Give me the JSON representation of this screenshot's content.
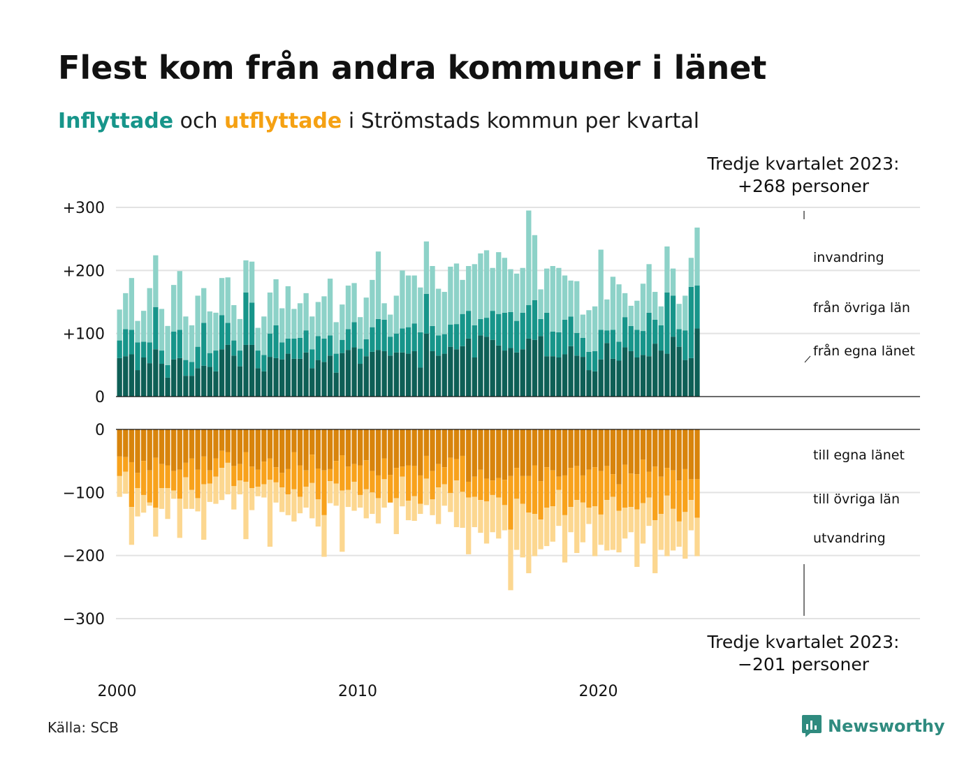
{
  "header": {
    "title": "Flest kom från andra kommuner i länet",
    "subtitle_inflow": "Inflyttade",
    "subtitle_och": "och",
    "subtitle_outflow": "utflyttade",
    "subtitle_rest": "i Strömstads kommun per kvartal"
  },
  "footer": {
    "source": "Källa: SCB",
    "brand": "Newsworthy"
  },
  "colors": {
    "in_same_county": "#0e5f56",
    "in_other_county": "#17958a",
    "in_immigration": "#8dd2c8",
    "out_same_county": "#d8840c",
    "out_other_county": "#f8a21c",
    "out_emigration": "#fcd790",
    "grid": "#e2e2e2",
    "brand": "#2f8b7f"
  },
  "chart_data": {
    "type": "bar",
    "stacked": true,
    "x_label_ticks": [
      "2000",
      "2010",
      "2020"
    ],
    "first_period": "2000 Q1",
    "last_period": "2023 Q3",
    "y_ticks_in": [
      "0",
      "+100",
      "+200",
      "+300"
    ],
    "y_ticks_out": [
      "0",
      "−100",
      "−200",
      "−300"
    ],
    "ylim_in": [
      0,
      300
    ],
    "ylim_out": [
      -300,
      0
    ],
    "in_series_names": [
      "från egna länet",
      "från övriga län",
      "invandring"
    ],
    "out_series_names": [
      "till egna länet",
      "till övriga län",
      "utvandring"
    ],
    "in_totals": [
      138,
      164,
      188,
      120,
      136,
      172,
      224,
      139,
      112,
      177,
      199,
      127,
      113,
      160,
      172,
      135,
      133,
      188,
      189,
      145,
      123,
      216,
      214,
      109,
      127,
      165,
      186,
      140,
      175,
      139,
      148,
      164,
      127,
      150,
      159,
      187,
      118,
      146,
      176,
      180,
      126,
      157,
      185,
      230,
      148,
      130,
      160,
      200,
      192,
      192,
      173,
      246,
      207,
      171,
      166,
      206,
      211,
      185,
      207,
      210,
      227,
      232,
      204,
      229,
      220,
      202,
      195,
      204,
      295,
      256,
      170,
      203,
      207,
      204,
      192,
      184,
      183,
      130,
      137,
      143,
      233,
      154,
      190,
      178,
      164,
      144,
      152,
      179,
      210,
      166,
      143,
      238,
      203,
      147,
      160,
      220,
      268
    ],
    "in_same": [
      61,
      64,
      67,
      42,
      62,
      53,
      75,
      52,
      30,
      59,
      61,
      33,
      33,
      45,
      49,
      47,
      40,
      75,
      82,
      65,
      48,
      82,
      82,
      45,
      40,
      63,
      61,
      59,
      68,
      60,
      60,
      70,
      45,
      58,
      55,
      65,
      38,
      69,
      74,
      78,
      52,
      64,
      71,
      74,
      72,
      65,
      70,
      70,
      68,
      72,
      46,
      100,
      72,
      65,
      68,
      79,
      75,
      80,
      92,
      62,
      97,
      95,
      90,
      81,
      73,
      77,
      70,
      75,
      92,
      90,
      96,
      64,
      64,
      62,
      67,
      80,
      65,
      63,
      42,
      40,
      59,
      85,
      60,
      57,
      78,
      72,
      62,
      66,
      64,
      84,
      73,
      68,
      95,
      79,
      58,
      61,
      108
    ],
    "in_other": [
      28,
      43,
      39,
      44,
      25,
      33,
      67,
      21,
      20,
      44,
      45,
      25,
      22,
      34,
      68,
      22,
      33,
      54,
      35,
      24,
      25,
      83,
      67,
      28,
      26,
      37,
      52,
      27,
      24,
      32,
      33,
      35,
      30,
      38,
      37,
      32,
      30,
      21,
      33,
      40,
      24,
      27,
      39,
      49,
      50,
      30,
      30,
      38,
      42,
      44,
      56,
      63,
      40,
      32,
      31,
      35,
      40,
      51,
      44,
      51,
      26,
      30,
      46,
      50,
      60,
      57,
      50,
      58,
      53,
      63,
      27,
      69,
      39,
      40,
      55,
      47,
      36,
      30,
      29,
      32,
      47,
      20,
      46,
      30,
      48,
      40,
      44,
      38,
      69,
      38,
      40,
      97,
      65,
      28,
      47,
      113,
      68
    ],
    "out_totals": [
      -107,
      -102,
      -183,
      -138,
      -132,
      -121,
      -170,
      -126,
      -142,
      -110,
      -172,
      -126,
      -126,
      -130,
      -175,
      -115,
      -118,
      -112,
      -103,
      -127,
      -103,
      -174,
      -128,
      -106,
      -108,
      -186,
      -116,
      -131,
      -136,
      -146,
      -133,
      -124,
      -141,
      -154,
      -202,
      -117,
      -121,
      -194,
      -123,
      -129,
      -124,
      -141,
      -134,
      -149,
      -124,
      -116,
      -166,
      -122,
      -144,
      -145,
      -134,
      -120,
      -136,
      -150,
      -121,
      -131,
      -155,
      -156,
      -198,
      -155,
      -164,
      -181,
      -163,
      -173,
      -160,
      -255,
      -191,
      -203,
      -228,
      -201,
      -190,
      -185,
      -178,
      -153,
      -211,
      -163,
      -196,
      -179,
      -150,
      -201,
      -183,
      -192,
      -191,
      -195,
      -173,
      -163,
      -218,
      -181,
      -153,
      -228,
      -191,
      -201,
      -192,
      -186,
      -205,
      -160,
      -201
    ],
    "out_same": [
      -43,
      -44,
      -52,
      -69,
      -50,
      -65,
      -45,
      -55,
      -57,
      -66,
      -64,
      -53,
      -46,
      -64,
      -43,
      -65,
      -46,
      -34,
      -36,
      -58,
      -55,
      -36,
      -59,
      -64,
      -51,
      -46,
      -60,
      -69,
      -63,
      -36,
      -57,
      -65,
      -40,
      -62,
      -65,
      -63,
      -50,
      -41,
      -59,
      -55,
      -57,
      -49,
      -66,
      -73,
      -46,
      -72,
      -61,
      -59,
      -57,
      -58,
      -73,
      -42,
      -66,
      -55,
      -60,
      -45,
      -47,
      -42,
      -83,
      -75,
      -64,
      -78,
      -81,
      -77,
      -80,
      -74,
      -61,
      -74,
      -74,
      -57,
      -82,
      -60,
      -65,
      -75,
      -73,
      -61,
      -58,
      -73,
      -64,
      -60,
      -66,
      -58,
      -71,
      -87,
      -56,
      -70,
      -71,
      -48,
      -67,
      -59,
      -75,
      -61,
      -65,
      -81,
      -63,
      -79,
      -79
    ],
    "out_other": [
      -31,
      -23,
      -71,
      -24,
      -54,
      -51,
      -79,
      -38,
      -36,
      -31,
      -46,
      -23,
      -50,
      -45,
      -44,
      -21,
      -29,
      -27,
      -17,
      -32,
      -26,
      -47,
      -34,
      -27,
      -36,
      -34,
      -24,
      -23,
      -40,
      -59,
      -50,
      -26,
      -45,
      -49,
      -71,
      -19,
      -36,
      -56,
      -37,
      -28,
      -47,
      -46,
      -34,
      -36,
      -33,
      -44,
      -48,
      -16,
      -56,
      -48,
      -45,
      -36,
      -45,
      -37,
      -27,
      -56,
      -34,
      -57,
      -25,
      -32,
      -48,
      -36,
      -23,
      -31,
      -40,
      -85,
      -49,
      -44,
      -58,
      -77,
      -61,
      -64,
      -57,
      -21,
      -63,
      -62,
      -54,
      -43,
      -60,
      -62,
      -69,
      -54,
      -36,
      -42,
      -68,
      -53,
      -56,
      -69,
      -41,
      -85,
      -59,
      -44,
      -61,
      -65,
      -68,
      -33,
      -61
    ],
    "annotations": {
      "top_line1": "Tredje kvartalet 2023:",
      "top_line2": "+268 personer",
      "bottom_line1": "Tredje kvartalet 2023:",
      "bottom_line2": "−201 personer"
    }
  }
}
